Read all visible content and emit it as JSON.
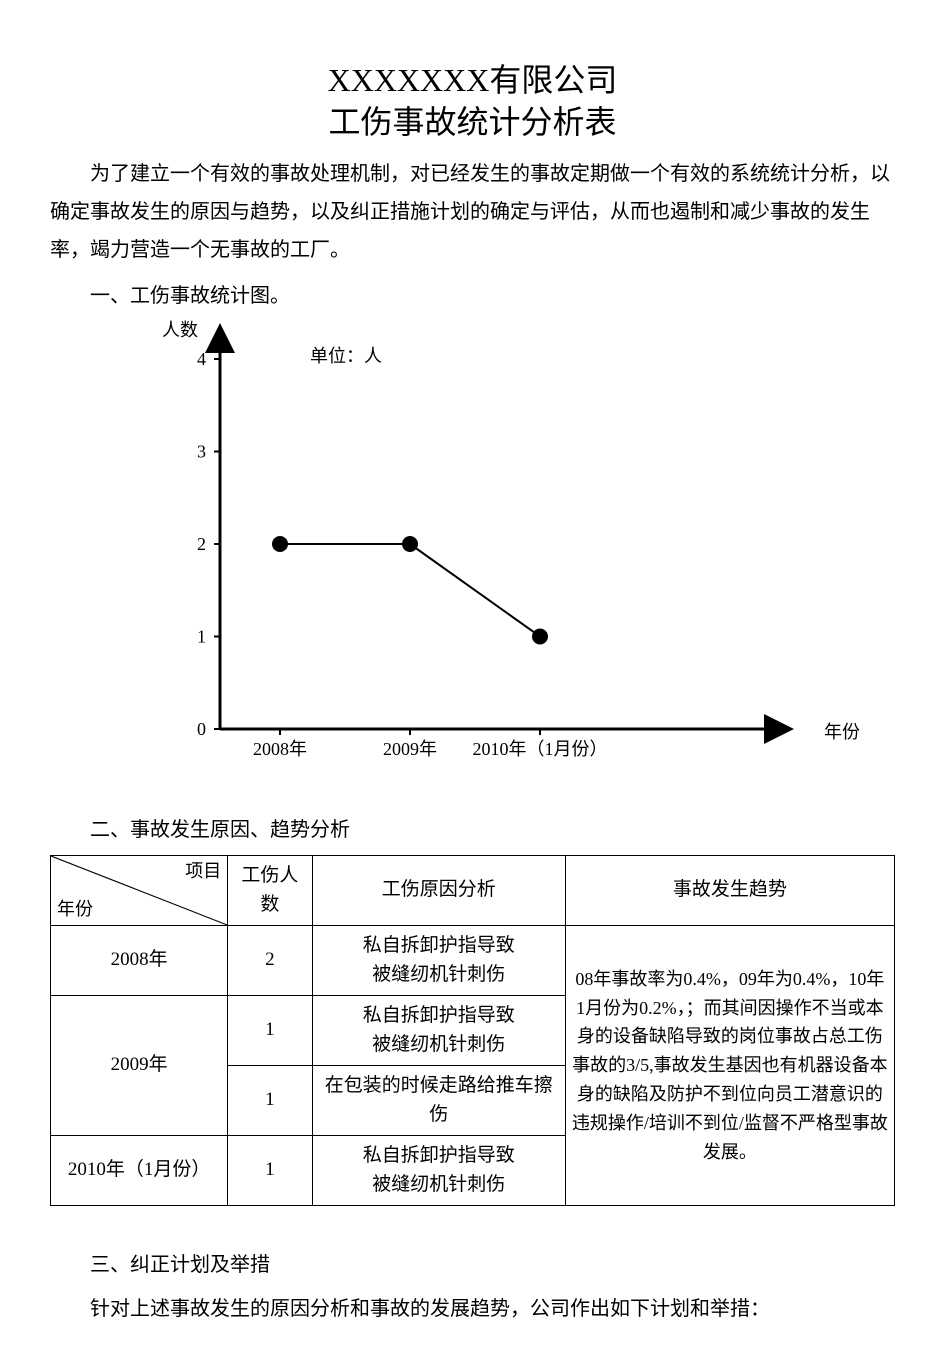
{
  "title": {
    "line1": "XXXXXXX有限公司",
    "line2": "工伤事故统计分析表"
  },
  "intro": "为了建立一个有效的事故处理机制，对已经发生的事故定期做一个有效的系统统计分析，以确定事故发生的原因与趋势，以及纠正措施计划的确定与评估，从而也遏制和减少事故的发生率，竭力营造一个无事故的工厂。",
  "section1": {
    "heading": "一、工伤事故统计图。",
    "ylabel": "人数",
    "unit": "单位：人",
    "xlabel": "年份",
    "chart": {
      "type": "line",
      "categories": [
        "2008年",
        "2009年",
        "2010年（1月份）"
      ],
      "values": [
        2,
        2,
        1
      ],
      "ylim": [
        0,
        4
      ],
      "ytick_step": 1,
      "line_color": "#000000",
      "marker_color": "#000000",
      "marker_radius": 8,
      "line_width": 2,
      "axis_color": "#000000",
      "axis_width": 3,
      "tick_fontsize": 18,
      "background_color": "#ffffff"
    }
  },
  "section2": {
    "heading": "二、事故发生原因、趋势分析",
    "table": {
      "diag_header": {
        "left": "年份",
        "right": "项目"
      },
      "columns": [
        "工伤人数",
        "工伤原因分析",
        "事故发生趋势"
      ],
      "col_widths_pct": [
        21,
        10,
        30,
        39
      ],
      "rows": [
        {
          "year": "2008年",
          "count": "2",
          "reason": "私自拆卸护指导致\n被缝纫机针刺伤"
        },
        {
          "year": "2009年",
          "count": "1",
          "reason": "私自拆卸护指导致\n被缝纫机针刺伤"
        },
        {
          "year": "",
          "count": "1",
          "reason": "在包装的时候走路给推车擦伤"
        },
        {
          "year": "2010年（1月份）",
          "count": "1",
          "reason": "私自拆卸护指导致\n被缝纫机针刺伤"
        }
      ],
      "trend": "08年事故率为0.4%，09年为0.4%，10年1月份为0.2%，；而其间因操作不当或本身的设备缺陷导致的岗位事故占总工伤事故的3/5,事故发生基因也有机器设备本身的缺陷及防护不到位向员工潜意识的违规操作/培训不到位/监督不严格型事故发展。"
    }
  },
  "section3": {
    "heading": "三、纠正计划及举措",
    "para": "针对上述事故发生的原因分析和事故的发展趋势，公司作出如下计划和举措："
  }
}
